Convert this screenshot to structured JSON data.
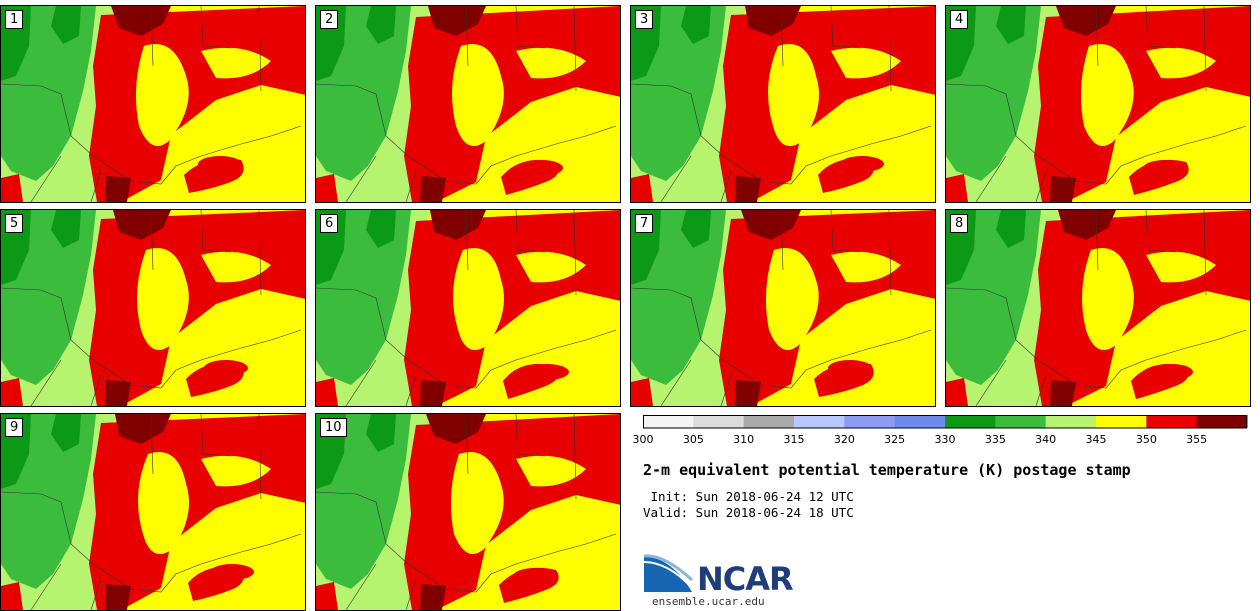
{
  "title": "2-m equivalent potential temperature (K) postage stamp",
  "init": " Init: Sun 2018-06-24 12 UTC",
  "valid": "Valid: Sun 2018-06-24 18 UTC",
  "site": "ensemble.ucar.edu",
  "logo_text": "NCAR",
  "members": [
    "1",
    "2",
    "3",
    "4",
    "5",
    "6",
    "7",
    "8",
    "9",
    "10"
  ],
  "colorbar": {
    "tick_labels": [
      "300",
      "305",
      "310",
      "315",
      "320",
      "325",
      "330",
      "335",
      "340",
      "345",
      "350",
      "355"
    ],
    "colors": [
      "#f4f4f4",
      "#dcdcdc",
      "#aaaaaa",
      "#b9c8ff",
      "#8c9cf5",
      "#6e8aee",
      "#0c9a16",
      "#3cbc3c",
      "#b6f36e",
      "#ffff00",
      "#e80000",
      "#800000"
    ]
  },
  "map_colors": {
    "dark_green": "#0c9a16",
    "green": "#3cbc3c",
    "light_green": "#b6f36e",
    "yellow": "#ffff00",
    "red": "#e80000",
    "dark_red": "#800000"
  }
}
